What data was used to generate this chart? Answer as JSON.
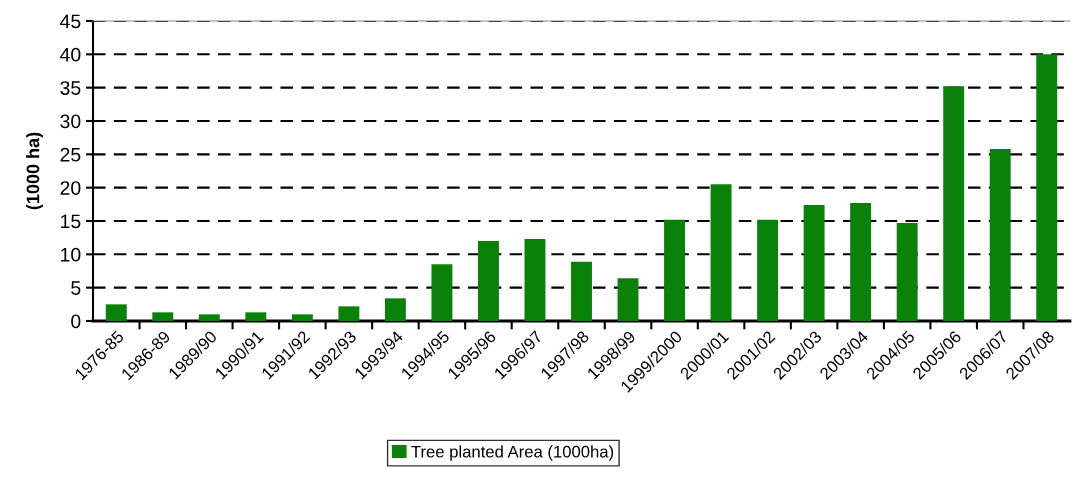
{
  "chart_data": {
    "type": "bar",
    "ylabel": "(1000 ha)",
    "categories": [
      "1976-85",
      "1986-89",
      "1989/90",
      "1990/91",
      "1991/92",
      "1992/93",
      "1993/94",
      "1994/95",
      "1995/96",
      "1996/97",
      "1997/98",
      "1998/99",
      "1999/2000",
      "2000/01",
      "2001/02",
      "2002/03",
      "2003/04",
      "2004/05",
      "2005/06",
      "2006/07",
      "2007/08"
    ],
    "series": [
      {
        "name": "Tree planted Area (1000ha)",
        "color": "#0a820a",
        "values": [
          2.5,
          1.3,
          1.0,
          1.3,
          1.0,
          2.2,
          3.4,
          8.5,
          12,
          12.3,
          8.9,
          6.4,
          15.2,
          20.5,
          15.2,
          17.4,
          17.7,
          14.7,
          35.2,
          25.8,
          40
        ]
      }
    ],
    "ylim": [
      0,
      45
    ],
    "yticks": [
      0,
      5,
      10,
      15,
      20,
      25,
      30,
      35,
      40,
      45
    ],
    "grid": "y",
    "legend": "bottom"
  }
}
